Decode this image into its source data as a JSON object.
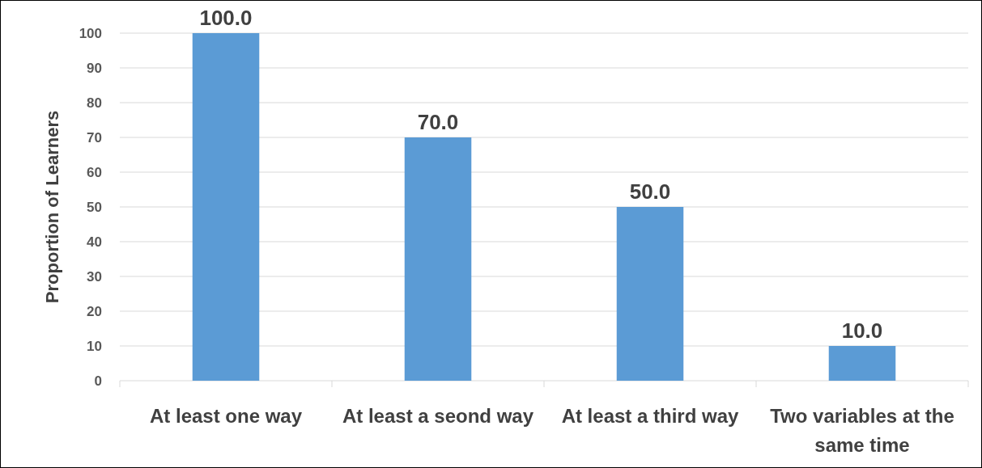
{
  "chart_data": {
    "type": "bar",
    "ylabel": "Proportion of Learners",
    "categories": [
      "At least one way",
      "At least a seond way",
      "At least a third way",
      "Two variables at the same time"
    ],
    "values": [
      100,
      70,
      50,
      10
    ],
    "color": "#5b9bd5",
    "value_labels": [
      "100.0",
      "70.0",
      "50.0",
      "10.0"
    ],
    "ylim": [
      0,
      100
    ],
    "yticks": [
      0,
      10,
      20,
      30,
      40,
      50,
      60,
      70,
      80,
      90,
      100
    ],
    "grid": "y"
  }
}
